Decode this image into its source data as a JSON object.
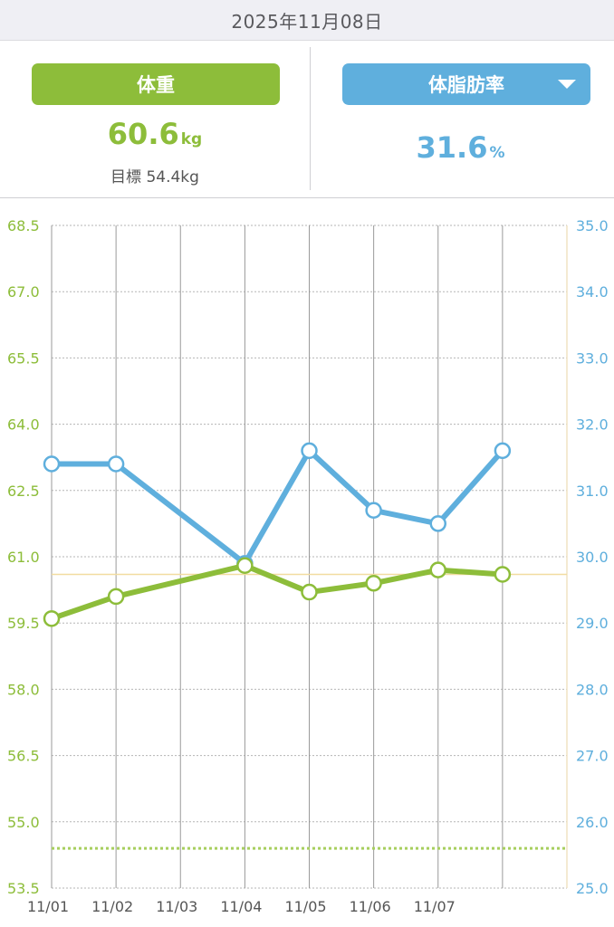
{
  "header": {
    "date": "2025年11月08日"
  },
  "weight_panel": {
    "button_label": "体重",
    "value": "60.6",
    "unit": "kg",
    "goal_label": "目標",
    "goal_value": "54.4kg"
  },
  "fat_panel": {
    "button_label": "体脂肪率",
    "value": "31.6",
    "unit": "%"
  },
  "colors": {
    "weight": "#8dbd3a",
    "fat": "#5fafdd",
    "reference": "#f2dca0",
    "goal": "#a7cf5e"
  },
  "chart_data": {
    "type": "line",
    "categories": [
      "11/01",
      "11/02",
      "11/03",
      "11/04",
      "11/05",
      "11/06",
      "11/07",
      ""
    ],
    "series": [
      {
        "axis": "left",
        "color": "#8dbd3a",
        "values": [
          59.6,
          60.1,
          null,
          60.8,
          60.2,
          60.4,
          60.7,
          60.6
        ]
      },
      {
        "axis": "right",
        "color": "#5fafdd",
        "values": [
          31.4,
          31.4,
          null,
          29.9,
          31.6,
          30.7,
          30.5,
          31.6
        ]
      }
    ],
    "y_left": {
      "min": 53.5,
      "max": 68.5,
      "ticks": [
        "68.5",
        "67.0",
        "65.5",
        "64.0",
        "62.5",
        "61.0",
        "59.5",
        "58.0",
        "56.5",
        "55.0",
        "53.5"
      ]
    },
    "y_right": {
      "min": 25.0,
      "max": 35.0,
      "ticks": [
        "35.0",
        "34.0",
        "33.0",
        "32.0",
        "31.0",
        "30.0",
        "29.0",
        "28.0",
        "27.0",
        "26.0",
        "25.0"
      ]
    },
    "reference_line_left": 60.6,
    "goal_line_left": 54.4,
    "grid": true
  }
}
